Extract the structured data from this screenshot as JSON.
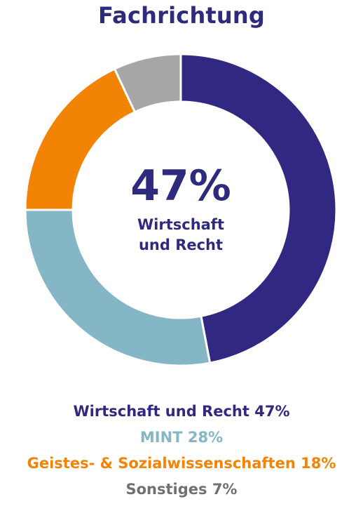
{
  "colors": {
    "title": "#2E2A7D",
    "center": "#2E2A7D"
  },
  "chart_data": {
    "type": "pie",
    "variant": "donut",
    "title": "Fachrichtung",
    "center": {
      "value": "47%",
      "label_line1": "Wirtschaft",
      "label_line2": "und Recht"
    },
    "slices": [
      {
        "label": "Wirtschaft und Recht",
        "value": 47,
        "color": "#312882"
      },
      {
        "label": "MINT",
        "value": 28,
        "color": "#84B6C6"
      },
      {
        "label": "Geistes- & Sozialwissenschaften",
        "value": 18,
        "color": "#F28305"
      },
      {
        "label": "Sonstiges",
        "value": 7,
        "color": "#A6A6A6"
      }
    ],
    "legend": [
      {
        "text": "Wirtschaft und Recht 47%",
        "color": "#312882"
      },
      {
        "text": "MINT 28%",
        "color": "#84B6C6"
      },
      {
        "text": "Geistes- & Sozialwissenschaften 18%",
        "color": "#F28305"
      },
      {
        "text": "Sonstiges 7%",
        "color": "#707070"
      }
    ]
  }
}
